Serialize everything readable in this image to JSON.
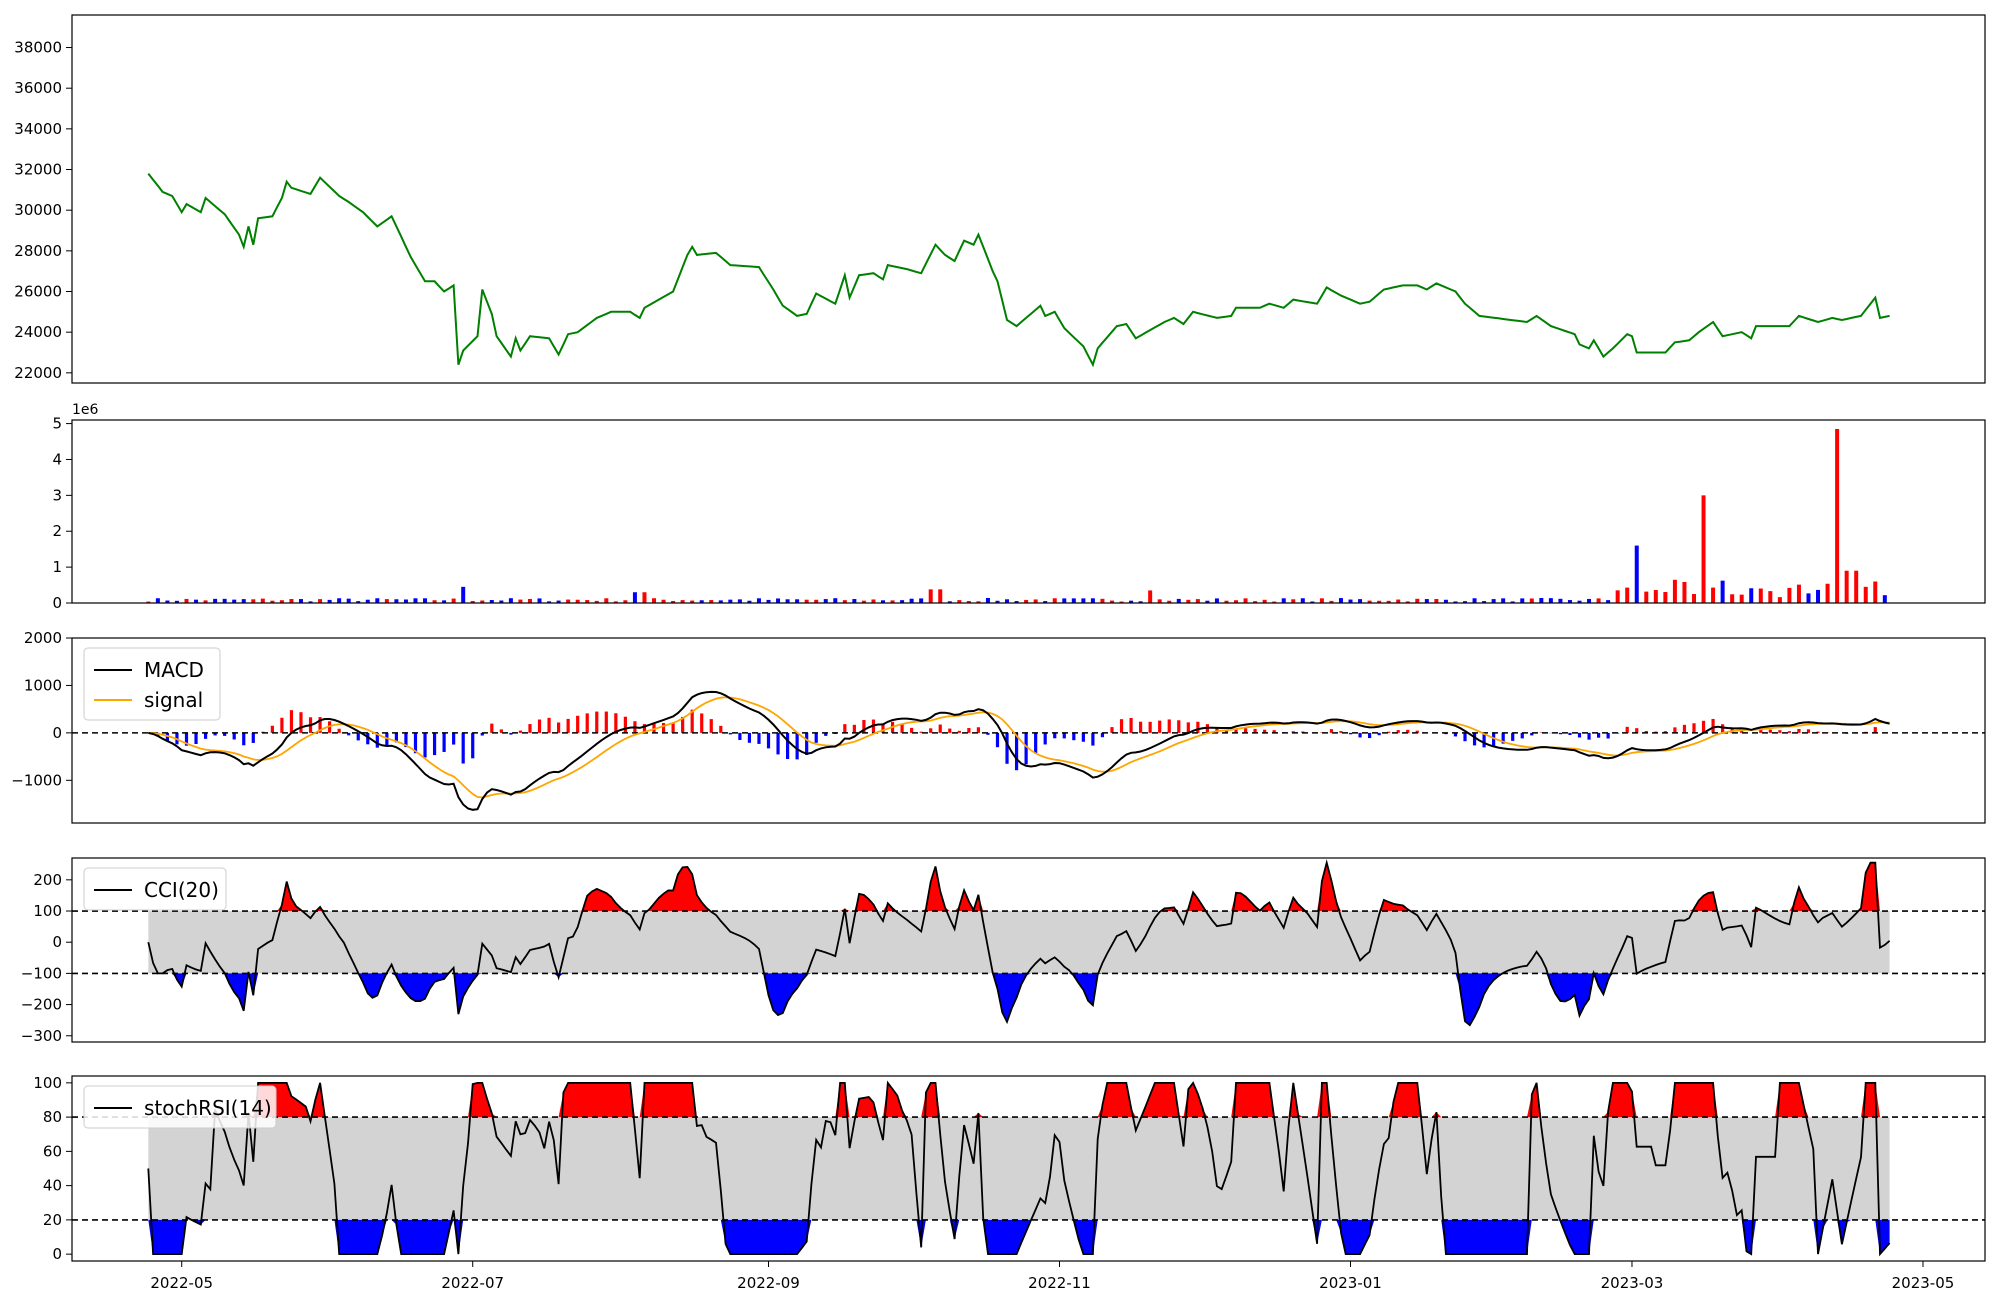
{
  "chart_data": [
    {
      "type": "line",
      "series": [
        {
          "color": "#008000"
        }
      ],
      "x_range": [
        "2022-04-24",
        "2023-04-24"
      ],
      "knots": [
        [
          "2022-04-24",
          31800
        ],
        [
          "2022-04-27",
          30900
        ],
        [
          "2022-04-29",
          30700
        ],
        [
          "2022-05-01",
          29900
        ],
        [
          "2022-05-02",
          30300
        ],
        [
          "2022-05-05",
          29900
        ],
        [
          "2022-05-06",
          30600
        ],
        [
          "2022-05-10",
          29800
        ],
        [
          "2022-05-13",
          28800
        ],
        [
          "2022-05-14",
          28200
        ],
        [
          "2022-05-15",
          29200
        ],
        [
          "2022-05-16",
          28300
        ],
        [
          "2022-05-17",
          29600
        ],
        [
          "2022-05-20",
          29700
        ],
        [
          "2022-05-22",
          30600
        ],
        [
          "2022-05-23",
          31400
        ],
        [
          "2022-05-24",
          31100
        ],
        [
          "2022-05-28",
          30800
        ],
        [
          "2022-05-30",
          31600
        ],
        [
          "2022-06-03",
          30700
        ],
        [
          "2022-06-05",
          30400
        ],
        [
          "2022-06-08",
          29900
        ],
        [
          "2022-06-11",
          29200
        ],
        [
          "2022-06-14",
          29700
        ],
        [
          "2022-06-18",
          27700
        ],
        [
          "2022-06-21",
          26500
        ],
        [
          "2022-06-23",
          26500
        ],
        [
          "2022-06-25",
          26000
        ],
        [
          "2022-06-27",
          26300
        ],
        [
          "2022-06-28",
          22400
        ],
        [
          "2022-06-29",
          23100
        ],
        [
          "2022-07-02",
          23800
        ],
        [
          "2022-07-03",
          26100
        ],
        [
          "2022-07-05",
          24900
        ],
        [
          "2022-07-06",
          23800
        ],
        [
          "2022-07-09",
          22800
        ],
        [
          "2022-07-10",
          23700
        ],
        [
          "2022-07-11",
          23100
        ],
        [
          "2022-07-13",
          23800
        ],
        [
          "2022-07-17",
          23700
        ],
        [
          "2022-07-19",
          22900
        ],
        [
          "2022-07-21",
          23900
        ],
        [
          "2022-07-23",
          24000
        ],
        [
          "2022-07-27",
          24700
        ],
        [
          "2022-07-30",
          25000
        ],
        [
          "2022-08-03",
          25000
        ],
        [
          "2022-08-05",
          24700
        ],
        [
          "2022-08-06",
          25200
        ],
        [
          "2022-08-12",
          26000
        ],
        [
          "2022-08-15",
          27800
        ],
        [
          "2022-08-16",
          28200
        ],
        [
          "2022-08-17",
          27800
        ],
        [
          "2022-08-21",
          27900
        ],
        [
          "2022-08-24",
          27300
        ],
        [
          "2022-08-30",
          27200
        ],
        [
          "2022-09-02",
          26100
        ],
        [
          "2022-09-04",
          25300
        ],
        [
          "2022-09-07",
          24800
        ],
        [
          "2022-09-09",
          24900
        ],
        [
          "2022-09-11",
          25900
        ],
        [
          "2022-09-15",
          25400
        ],
        [
          "2022-09-17",
          26800
        ],
        [
          "2022-09-18",
          25700
        ],
        [
          "2022-09-20",
          26800
        ],
        [
          "2022-09-23",
          26900
        ],
        [
          "2022-09-25",
          26600
        ],
        [
          "2022-09-26",
          27300
        ],
        [
          "2022-09-30",
          27100
        ],
        [
          "2022-10-03",
          26900
        ],
        [
          "2022-10-06",
          28300
        ],
        [
          "2022-10-08",
          27800
        ],
        [
          "2022-10-10",
          27500
        ],
        [
          "2022-10-12",
          28500
        ],
        [
          "2022-10-14",
          28300
        ],
        [
          "2022-10-15",
          28800
        ],
        [
          "2022-10-18",
          27000
        ],
        [
          "2022-10-19",
          26500
        ],
        [
          "2022-10-21",
          24600
        ],
        [
          "2022-10-23",
          24300
        ],
        [
          "2022-10-28",
          25300
        ],
        [
          "2022-10-29",
          24800
        ],
        [
          "2022-10-31",
          25000
        ],
        [
          "2022-11-02",
          24200
        ],
        [
          "2022-11-06",
          23300
        ],
        [
          "2022-11-08",
          22400
        ],
        [
          "2022-11-09",
          23200
        ],
        [
          "2022-11-13",
          24300
        ],
        [
          "2022-11-15",
          24400
        ],
        [
          "2022-11-17",
          23700
        ],
        [
          "2022-11-23",
          24500
        ],
        [
          "2022-11-25",
          24700
        ],
        [
          "2022-11-27",
          24400
        ],
        [
          "2022-11-29",
          25000
        ],
        [
          "2022-12-04",
          24700
        ],
        [
          "2022-12-07",
          24800
        ],
        [
          "2022-12-08",
          25200
        ],
        [
          "2022-12-13",
          25200
        ],
        [
          "2022-12-15",
          25400
        ],
        [
          "2022-12-18",
          25200
        ],
        [
          "2022-12-20",
          25600
        ],
        [
          "2022-12-25",
          25400
        ],
        [
          "2022-12-27",
          26200
        ],
        [
          "2022-12-30",
          25800
        ],
        [
          "2023-01-03",
          25400
        ],
        [
          "2023-01-05",
          25500
        ],
        [
          "2023-01-08",
          26100
        ],
        [
          "2023-01-12",
          26300
        ],
        [
          "2023-01-15",
          26300
        ],
        [
          "2023-01-17",
          26100
        ],
        [
          "2023-01-19",
          26400
        ],
        [
          "2023-01-23",
          26000
        ],
        [
          "2023-01-25",
          25400
        ],
        [
          "2023-01-28",
          24800
        ],
        [
          "2023-02-07",
          24500
        ],
        [
          "2023-02-09",
          24800
        ],
        [
          "2023-02-12",
          24300
        ],
        [
          "2023-02-17",
          23900
        ],
        [
          "2023-02-18",
          23400
        ],
        [
          "2023-02-20",
          23200
        ],
        [
          "2023-02-21",
          23600
        ],
        [
          "2023-02-23",
          22800
        ],
        [
          "2023-02-25",
          23200
        ],
        [
          "2023-02-28",
          23900
        ],
        [
          "2023-03-01",
          23800
        ],
        [
          "2023-03-02",
          23000
        ],
        [
          "2023-03-08",
          23000
        ],
        [
          "2023-03-10",
          23500
        ],
        [
          "2023-03-13",
          23600
        ],
        [
          "2023-03-15",
          24000
        ],
        [
          "2023-03-18",
          24500
        ],
        [
          "2023-03-20",
          23800
        ],
        [
          "2023-03-24",
          24000
        ],
        [
          "2023-03-26",
          23700
        ],
        [
          "2023-03-27",
          24300
        ],
        [
          "2023-04-03",
          24300
        ],
        [
          "2023-04-05",
          24800
        ],
        [
          "2023-04-09",
          24500
        ],
        [
          "2023-04-12",
          24700
        ],
        [
          "2023-04-14",
          24600
        ],
        [
          "2023-04-18",
          24800
        ],
        [
          "2023-04-19",
          25100
        ],
        [
          "2023-04-21",
          25700
        ],
        [
          "2023-04-22",
          24700
        ],
        [
          "2023-04-24",
          24800
        ]
      ],
      "note_series_x": "sample positions on the shared date axis",
      "yticks": [
        22000,
        24000,
        26000,
        28000,
        30000,
        32000,
        34000,
        36000,
        38000
      ],
      "ylim": [
        21500,
        39600
      ]
    },
    {
      "type": "bar",
      "series": [
        {
          "name": "",
          "colors": [
            "#ff0000",
            "#0000ff"
          ]
        }
      ],
      "offset_label": "1e6",
      "ylim": [
        0,
        5.1
      ],
      "yticks": [
        0,
        1,
        2,
        3,
        4,
        5
      ],
      "peaks": [
        [
          "2022-06-29",
          0.45
        ],
        [
          "2022-08-05",
          0.3
        ],
        [
          "2022-10-06",
          0.38
        ],
        [
          "2022-11-20",
          0.35
        ],
        [
          "2023-03-02",
          1.6
        ],
        [
          "2023-03-16",
          3.0
        ],
        [
          "2023-04-14",
          4.85
        ],
        [
          "2023-04-16",
          0.9
        ]
      ]
    },
    {
      "type": "line",
      "series": [
        {
          "name": "MACD",
          "color": "#000000"
        },
        {
          "name": "signal",
          "color": "#ffa500"
        }
      ],
      "histogram_colors": {
        "positive": "#ff0000",
        "negative": "#0000ff"
      },
      "ylim": [
        -1900,
        2000
      ],
      "yticks": [
        -1000,
        0,
        1000,
        2000
      ],
      "zero_line": "dashed"
    },
    {
      "type": "line",
      "series": [
        {
          "name": "CCI(20)",
          "color": "#000000"
        }
      ],
      "band": [
        -100,
        100
      ],
      "band_color": "#d3d3d3",
      "over_color": "#ff0000",
      "under_color": "#0000ff",
      "ylim": [
        -320,
        270
      ],
      "yticks": [
        -300,
        -200,
        -100,
        0,
        100,
        200
      ]
    },
    {
      "type": "line",
      "series": [
        {
          "name": "stochRSI(14)",
          "color": "#000000"
        }
      ],
      "band": [
        20,
        80
      ],
      "band_color": "#d3d3d3",
      "over_color": "#ff0000",
      "under_color": "#0000ff",
      "ylim": [
        -4,
        104
      ],
      "yticks": [
        0,
        20,
        40,
        60,
        80,
        100
      ]
    }
  ],
  "x_axis": {
    "ticks": [
      {
        "label": "2022-05",
        "date": "2022-05-01"
      },
      {
        "label": "2022-07",
        "date": "2022-07-01"
      },
      {
        "label": "2022-09",
        "date": "2022-09-01"
      },
      {
        "label": "2022-11",
        "date": "2022-11-01"
      },
      {
        "label": "2023-01",
        "date": "2023-01-01"
      },
      {
        "label": "2023-03",
        "date": "2023-03-01"
      },
      {
        "label": "2023-05",
        "date": "2023-05-01"
      }
    ],
    "xlim": [
      "2022-04-08",
      "2023-05-14"
    ]
  },
  "legends": {
    "macd": [
      "MACD",
      "signal"
    ],
    "cci": [
      "CCI(20)"
    ],
    "stoch": [
      "stochRSI(14)"
    ]
  }
}
